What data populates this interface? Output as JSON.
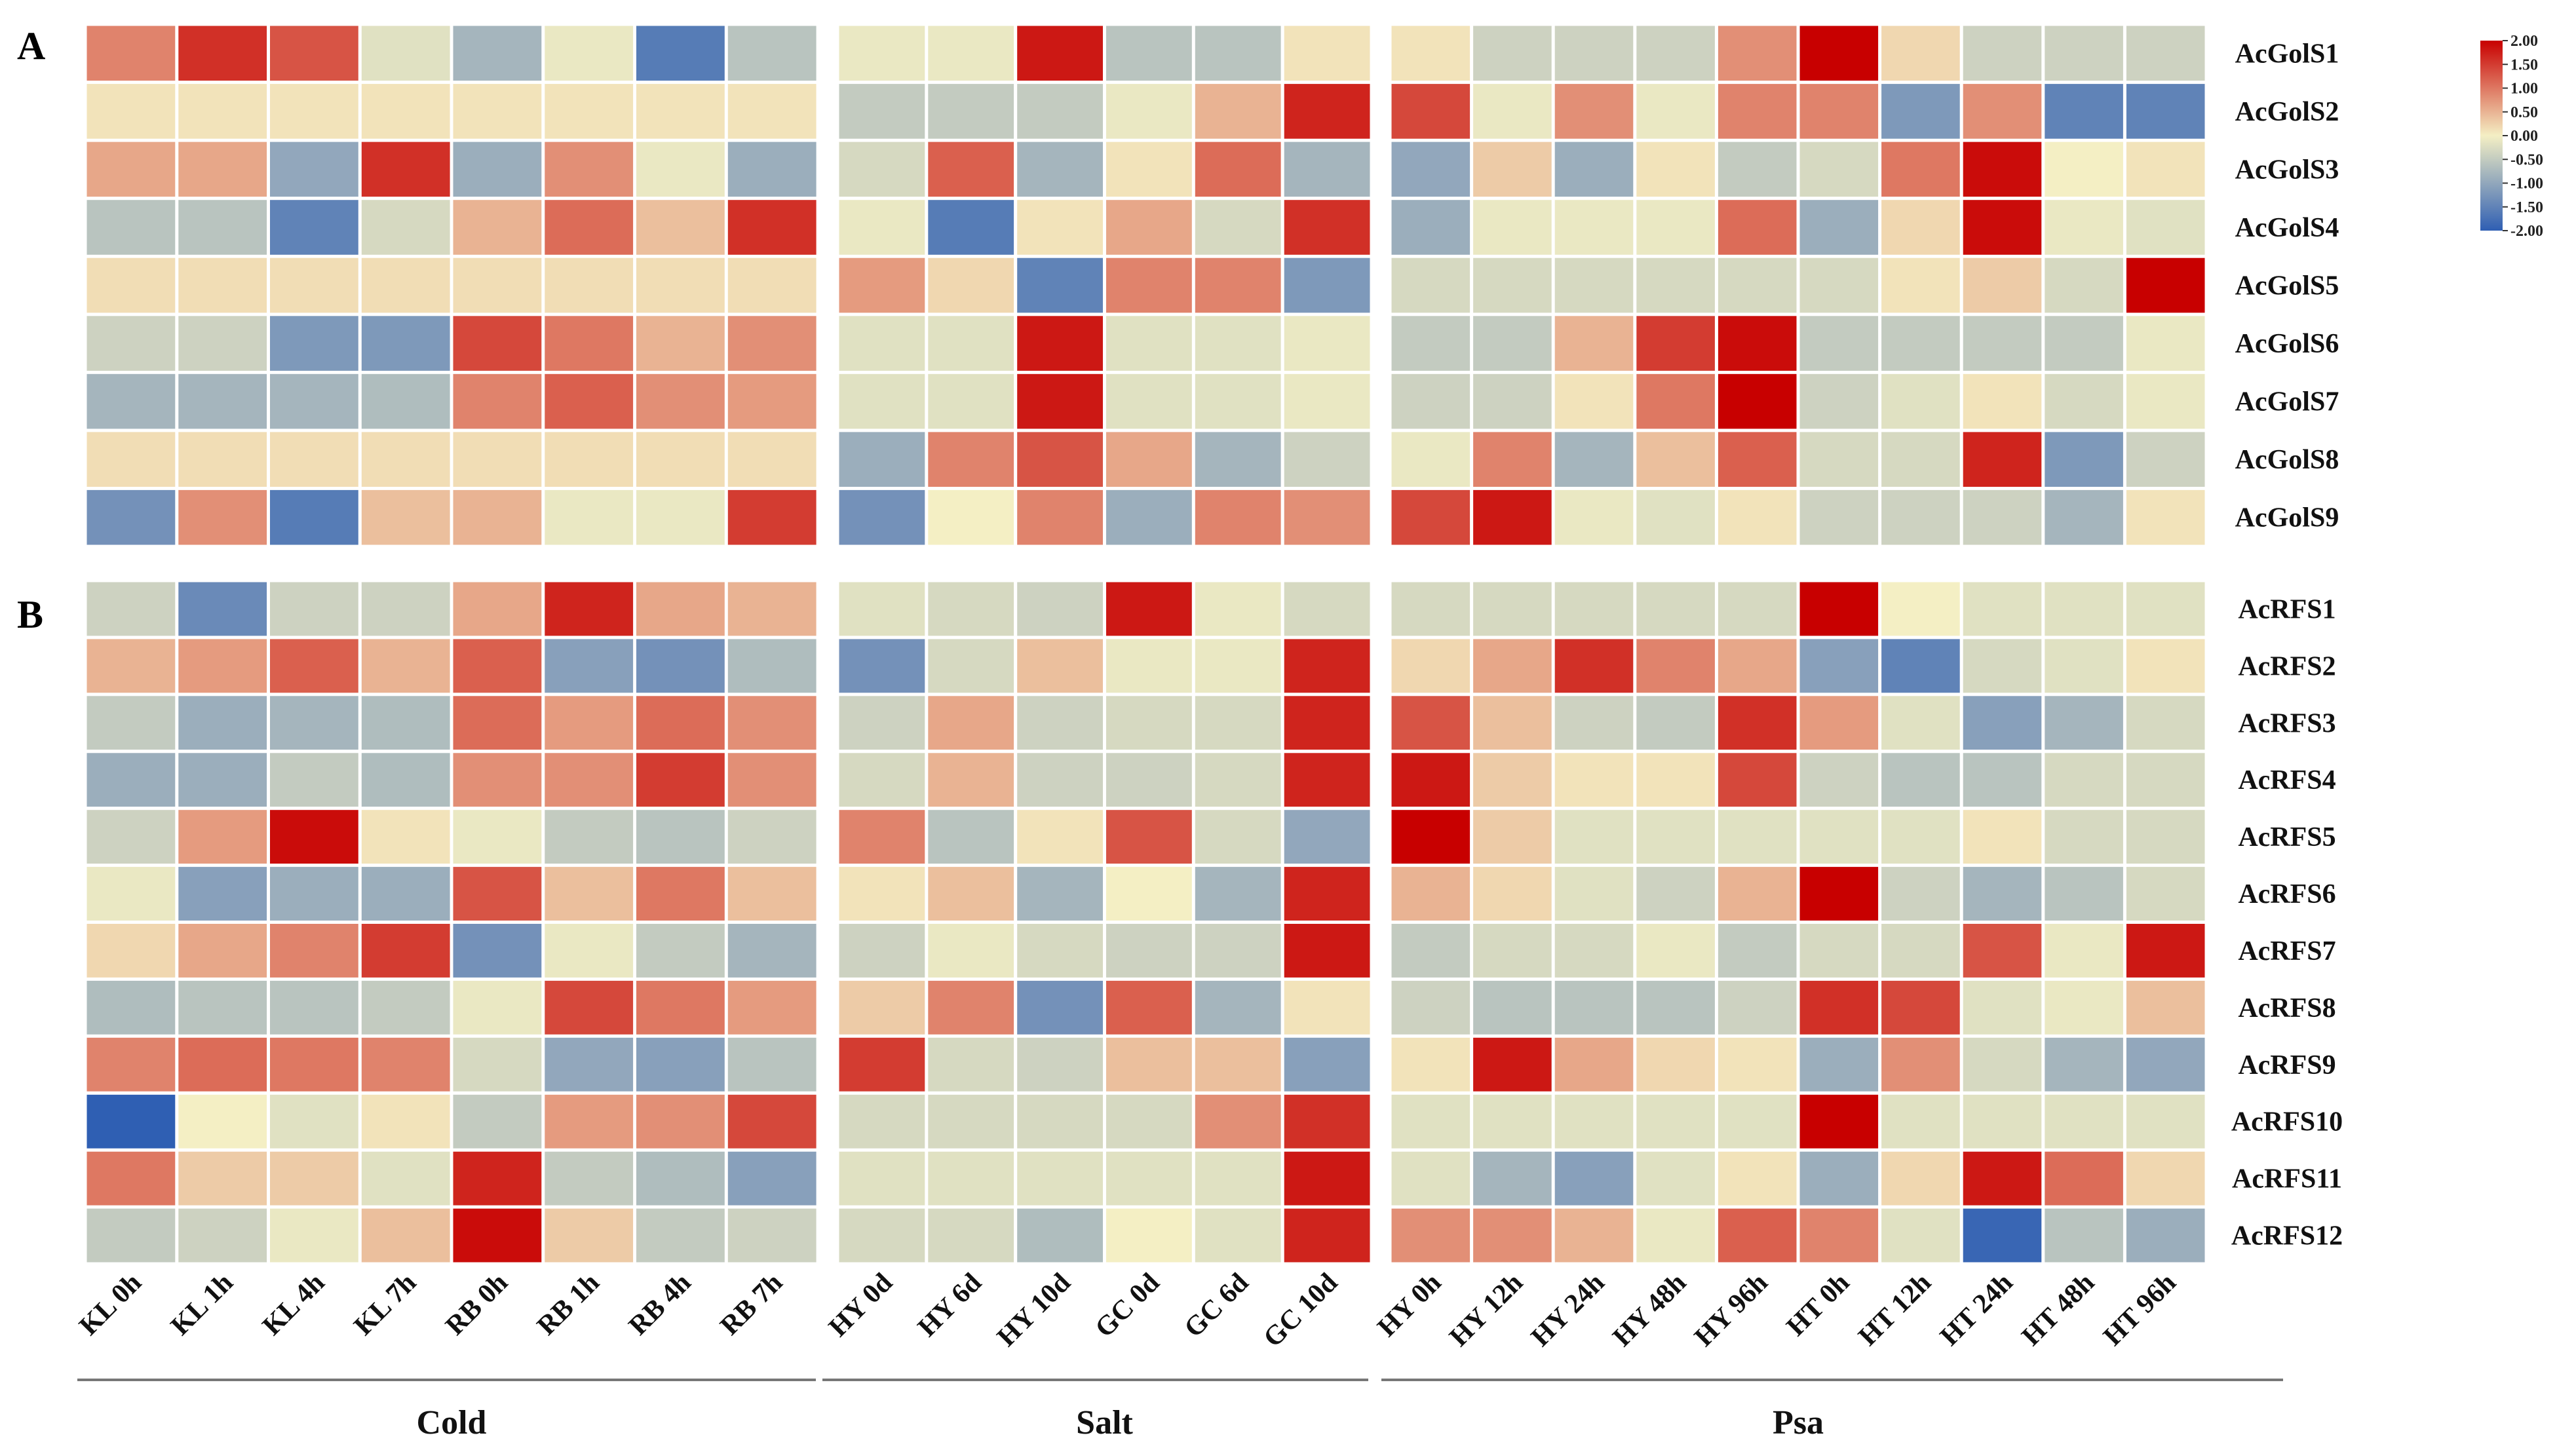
{
  "figure": {
    "panels": [
      {
        "label": "A"
      },
      {
        "label": "B"
      }
    ],
    "groups": [
      {
        "name": "Cold",
        "conditions": [
          "KL 0h",
          "KL 1h",
          "KL 4h",
          "KL 7h",
          "RB 0h",
          "RB 1h",
          "RB 4h",
          "RB 7h"
        ]
      },
      {
        "name": "Salt",
        "conditions": [
          "HY 0d",
          "HY 6d",
          "HY 10d",
          "GC 0d",
          "GC 6d",
          "GC 10d"
        ]
      },
      {
        "name": "Psa",
        "conditions": [
          "HY 0h",
          "HY 12h",
          "HY 24h",
          "HY 48h",
          "HY 96h",
          "HT 0h",
          "HT 12h",
          "HT 24h",
          "HT 48h",
          "HT 96h"
        ]
      }
    ],
    "colorbar": {
      "ticks": [
        "2.00",
        "1.50",
        "1.00",
        "0.50",
        "0.00",
        "-0.50",
        "-1.00",
        "-1.50",
        "-2.00"
      ],
      "low_color": "#2f5fb3",
      "mid_color": "#f4efc4",
      "high_color": "#c80000"
    }
  },
  "chart_data": [
    {
      "type": "heatmap",
      "panel": "A",
      "title": "",
      "scale_range": [
        -2,
        2
      ],
      "columns": [
        "KL 0h",
        "KL 1h",
        "KL 4h",
        "KL 7h",
        "RB 0h",
        "RB 1h",
        "RB 4h",
        "RB 7h",
        "HY 0d",
        "HY 6d",
        "HY 10d",
        "GC 0d",
        "GC 6d",
        "GC 10d",
        "HY 0h",
        "HY 12h",
        "HY 24h",
        "HY 48h",
        "HY 96h",
        "HT 0h",
        "HT 12h",
        "HT 24h",
        "HT 48h",
        "HT 96h"
      ],
      "rows": [
        {
          "gene": "AcGolS1",
          "values": [
            0.9,
            1.6,
            1.3,
            -0.2,
            -0.8,
            -0.1,
            -1.6,
            -0.6,
            -0.1,
            -0.1,
            1.8,
            -0.6,
            -0.6,
            0.1,
            0.1,
            -0.4,
            -0.4,
            -0.4,
            0.8,
            2.0,
            0.2,
            -0.4,
            -0.4,
            -0.4
          ]
        },
        {
          "gene": "AcGolS2",
          "values": [
            0.1,
            0.1,
            0.1,
            0.1,
            0.1,
            0.1,
            0.1,
            0.1,
            -0.5,
            -0.5,
            -0.5,
            -0.1,
            0.5,
            1.7,
            1.4,
            -0.1,
            0.8,
            -0.1,
            0.9,
            0.9,
            -1.2,
            0.8,
            -1.5,
            -1.5
          ]
        },
        {
          "gene": "AcGolS3",
          "values": [
            0.6,
            0.6,
            -1.0,
            1.6,
            -0.9,
            0.8,
            -0.1,
            -0.9,
            -0.3,
            1.2,
            -0.8,
            0.1,
            1.1,
            -0.8,
            -1.0,
            0.3,
            -0.9,
            0.1,
            -0.5,
            -0.3,
            1.0,
            1.9,
            0.0,
            0.1
          ]
        },
        {
          "gene": "AcGolS4",
          "values": [
            -0.6,
            -0.6,
            -1.5,
            -0.3,
            0.5,
            1.1,
            0.4,
            1.6,
            -0.1,
            -1.6,
            0.1,
            0.6,
            -0.3,
            1.6,
            -0.9,
            -0.1,
            -0.1,
            -0.1,
            1.1,
            -0.9,
            0.2,
            1.9,
            -0.1,
            -0.2
          ]
        },
        {
          "gene": "AcGolS5",
          "values": [
            0.15,
            0.15,
            0.15,
            0.15,
            0.15,
            0.15,
            0.15,
            0.15,
            0.7,
            0.2,
            -1.5,
            0.9,
            0.9,
            -1.2,
            -0.3,
            -0.3,
            -0.3,
            -0.3,
            -0.3,
            -0.3,
            0.1,
            0.3,
            -0.3,
            2.0
          ]
        },
        {
          "gene": "AcGolS6",
          "values": [
            -0.4,
            -0.4,
            -1.2,
            -1.2,
            1.4,
            1.0,
            0.5,
            0.8,
            -0.2,
            -0.2,
            1.8,
            -0.2,
            -0.2,
            -0.1,
            -0.5,
            -0.5,
            0.5,
            1.5,
            1.9,
            -0.5,
            -0.5,
            -0.5,
            -0.5,
            -0.1
          ]
        },
        {
          "gene": "AcGolS7",
          "values": [
            -0.8,
            -0.8,
            -0.8,
            -0.7,
            0.9,
            1.2,
            0.8,
            0.7,
            -0.2,
            -0.2,
            1.8,
            -0.2,
            -0.2,
            -0.1,
            -0.4,
            -0.4,
            0.1,
            1.0,
            2.0,
            -0.4,
            -0.2,
            0.1,
            -0.3,
            -0.1
          ]
        },
        {
          "gene": "AcGolS8",
          "values": [
            0.15,
            0.15,
            0.15,
            0.15,
            0.15,
            0.15,
            0.15,
            0.15,
            -0.9,
            0.9,
            1.3,
            0.6,
            -0.8,
            -0.4,
            -0.1,
            0.9,
            -0.8,
            0.4,
            1.2,
            -0.3,
            -0.3,
            1.7,
            -1.2,
            -0.4
          ]
        },
        {
          "gene": "AcGolS9",
          "values": [
            -1.3,
            0.8,
            -1.6,
            0.4,
            0.5,
            -0.1,
            -0.1,
            1.5,
            -1.3,
            0.0,
            0.9,
            -0.9,
            0.9,
            0.8,
            1.4,
            1.8,
            -0.1,
            -0.2,
            0.1,
            -0.4,
            -0.4,
            -0.4,
            -0.8,
            0.1
          ]
        }
      ]
    },
    {
      "type": "heatmap",
      "panel": "B",
      "title": "",
      "scale_range": [
        -2,
        2
      ],
      "columns": [
        "KL 0h",
        "KL 1h",
        "KL 4h",
        "KL 7h",
        "RB 0h",
        "RB 1h",
        "RB 4h",
        "RB 7h",
        "HY 0d",
        "HY 6d",
        "HY 10d",
        "GC 0d",
        "GC 6d",
        "GC 10d",
        "HY 0h",
        "HY 12h",
        "HY 24h",
        "HY 48h",
        "HY 96h",
        "HT 0h",
        "HT 12h",
        "HT 24h",
        "HT 48h",
        "HT 96h"
      ],
      "rows": [
        {
          "gene": "AcRFS1",
          "values": [
            -0.4,
            -1.4,
            -0.4,
            -0.4,
            0.6,
            1.7,
            0.6,
            0.5,
            -0.2,
            -0.3,
            -0.4,
            1.8,
            -0.1,
            -0.3,
            -0.3,
            -0.3,
            -0.3,
            -0.3,
            -0.3,
            2.0,
            0.0,
            -0.2,
            -0.2,
            -0.2
          ]
        },
        {
          "gene": "AcRFS2",
          "values": [
            0.5,
            0.7,
            1.2,
            0.5,
            1.2,
            -1.1,
            -1.3,
            -0.7,
            -1.3,
            -0.3,
            0.4,
            -0.1,
            -0.1,
            1.7,
            0.2,
            0.6,
            1.6,
            0.9,
            0.6,
            -1.1,
            -1.5,
            -0.3,
            -0.2,
            0.1
          ]
        },
        {
          "gene": "AcRFS3",
          "values": [
            -0.5,
            -0.9,
            -0.8,
            -0.7,
            1.1,
            0.7,
            1.1,
            0.8,
            -0.4,
            0.6,
            -0.4,
            -0.3,
            -0.3,
            1.7,
            1.3,
            0.4,
            -0.4,
            -0.5,
            1.6,
            0.7,
            -0.2,
            -1.1,
            -0.8,
            -0.3
          ]
        },
        {
          "gene": "AcRFS4",
          "values": [
            -0.9,
            -0.9,
            -0.5,
            -0.7,
            0.8,
            0.8,
            1.5,
            0.8,
            -0.3,
            0.5,
            -0.4,
            -0.4,
            -0.3,
            1.7,
            1.8,
            0.3,
            0.1,
            0.1,
            1.4,
            -0.4,
            -0.6,
            -0.6,
            -0.3,
            -0.3
          ]
        },
        {
          "gene": "AcRFS5",
          "values": [
            -0.4,
            0.7,
            1.9,
            0.1,
            -0.1,
            -0.5,
            -0.6,
            -0.4,
            0.9,
            -0.6,
            0.1,
            1.3,
            -0.3,
            -1.0,
            2.0,
            0.3,
            -0.2,
            -0.2,
            -0.2,
            -0.2,
            -0.2,
            0.1,
            -0.3,
            -0.3
          ]
        },
        {
          "gene": "AcRFS6",
          "values": [
            -0.1,
            -1.1,
            -0.9,
            -0.9,
            1.3,
            0.4,
            1.0,
            0.4,
            0.1,
            0.4,
            -0.8,
            0.0,
            -0.8,
            1.7,
            0.5,
            0.2,
            -0.2,
            -0.4,
            0.5,
            2.0,
            -0.4,
            -0.8,
            -0.6,
            -0.3
          ]
        },
        {
          "gene": "AcRFS7",
          "values": [
            0.2,
            0.6,
            0.9,
            1.5,
            -1.3,
            -0.1,
            -0.5,
            -0.8,
            -0.4,
            -0.1,
            -0.3,
            -0.4,
            -0.4,
            1.8,
            -0.5,
            -0.3,
            -0.3,
            -0.1,
            -0.5,
            -0.3,
            -0.3,
            1.3,
            -0.1,
            1.8
          ]
        },
        {
          "gene": "AcRFS8",
          "values": [
            -0.7,
            -0.6,
            -0.6,
            -0.5,
            -0.1,
            1.4,
            1.0,
            0.7,
            0.3,
            0.9,
            -1.3,
            1.2,
            -0.8,
            0.1,
            -0.4,
            -0.6,
            -0.6,
            -0.6,
            -0.4,
            1.6,
            1.4,
            -0.2,
            -0.1,
            0.4
          ]
        },
        {
          "gene": "AcRFS9",
          "values": [
            0.9,
            1.1,
            1.0,
            0.9,
            -0.3,
            -1.0,
            -1.1,
            -0.6,
            1.5,
            -0.3,
            -0.4,
            0.4,
            0.4,
            -1.1,
            0.1,
            1.8,
            0.6,
            0.2,
            0.1,
            -0.9,
            0.8,
            -0.3,
            -0.8,
            -1.0
          ]
        },
        {
          "gene": "AcRFS10",
          "values": [
            -2.0,
            0.0,
            -0.2,
            0.1,
            -0.5,
            0.7,
            0.8,
            1.4,
            -0.3,
            -0.3,
            -0.3,
            -0.3,
            0.8,
            1.6,
            -0.2,
            -0.2,
            -0.2,
            -0.2,
            -0.2,
            2.0,
            -0.2,
            -0.2,
            -0.2,
            -0.2
          ]
        },
        {
          "gene": "AcRFS11",
          "values": [
            1.0,
            0.3,
            0.3,
            -0.2,
            1.7,
            -0.5,
            -0.7,
            -1.1,
            -0.2,
            -0.2,
            -0.2,
            -0.2,
            -0.2,
            1.8,
            -0.2,
            -0.8,
            -1.1,
            -0.2,
            0.1,
            -0.9,
            0.2,
            1.8,
            1.1,
            0.2
          ]
        },
        {
          "gene": "AcRFS12",
          "values": [
            -0.5,
            -0.4,
            -0.1,
            0.4,
            1.9,
            0.3,
            -0.5,
            -0.4,
            -0.3,
            -0.3,
            -0.7,
            0.0,
            -0.2,
            1.7,
            0.8,
            0.8,
            0.5,
            -0.1,
            1.2,
            0.9,
            -0.2,
            -1.9,
            -0.6,
            -0.9
          ]
        }
      ]
    }
  ]
}
